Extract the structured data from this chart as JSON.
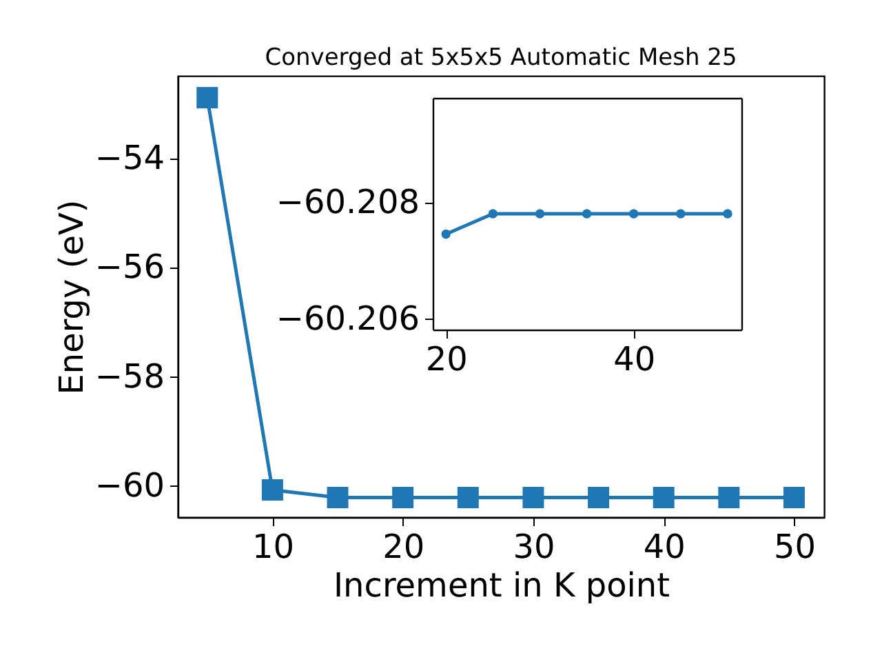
{
  "chart_data": [
    {
      "type": "line",
      "title": "Converged at 5x5x5 Automatic Mesh 25",
      "xlabel": "Increment in K point",
      "ylabel": "Energy (eV)",
      "x": [
        5,
        10,
        15,
        20,
        25,
        30,
        35,
        40,
        45,
        50
      ],
      "series": [
        {
          "color": "#1f77b4",
          "values": [
            -52.88,
            -60.07,
            -60.21,
            -60.21,
            -60.21,
            -60.21,
            -60.21,
            -60.21,
            -60.21,
            -60.21
          ]
        }
      ],
      "marker": "square",
      "xlim": [
        2.74,
        52.3
      ],
      "ylim": [
        -60.57,
        -52.48
      ],
      "xticks": [
        10,
        20,
        30,
        40,
        50
      ],
      "yticks": [
        {
          "value": -60,
          "label": "−60"
        },
        {
          "value": -58,
          "label": "−58"
        },
        {
          "value": -56,
          "label": "−56"
        },
        {
          "value": -54,
          "label": "−54"
        }
      ]
    },
    {
      "type": "line",
      "x": [
        20,
        25,
        30,
        35,
        40,
        45,
        50
      ],
      "series": [
        {
          "color": "#1f77b4",
          "values": [
            -60.20746,
            -60.20781,
            -60.20781,
            -60.20781,
            -60.20781,
            -60.20781,
            -60.20781
          ]
        }
      ],
      "marker": "circle",
      "xlim": [
        18.59,
        51.47
      ],
      "ylim": [
        -60.20582,
        -60.2098
      ],
      "xticks": [
        20,
        40
      ],
      "yticks": [
        {
          "value": -60.208,
          "label": "−60.208"
        },
        {
          "value": -60.206,
          "label": "−60.206"
        }
      ]
    }
  ]
}
